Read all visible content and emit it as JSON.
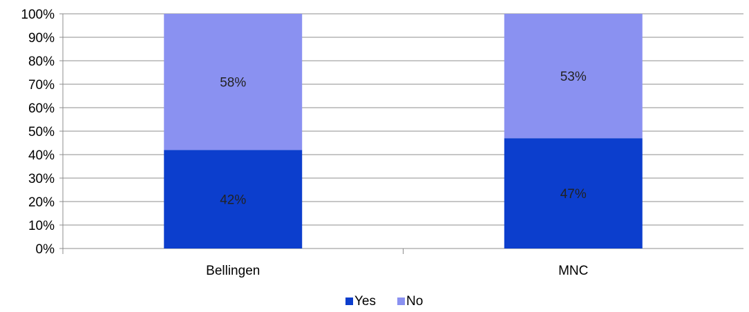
{
  "chart_data": {
    "type": "bar",
    "stacked": true,
    "percent": true,
    "categories": [
      "Bellingen",
      "MNC"
    ],
    "series": [
      {
        "name": "Yes",
        "values": [
          42,
          47
        ],
        "labels": [
          "42%",
          "47%"
        ],
        "color": "#0c3ecd"
      },
      {
        "name": "No",
        "values": [
          58,
          53
        ],
        "labels": [
          "58%",
          "53%"
        ],
        "color": "#8a91f1"
      }
    ],
    "yticks": [
      "0%",
      "10%",
      "20%",
      "30%",
      "40%",
      "50%",
      "60%",
      "70%",
      "80%",
      "90%",
      "100%"
    ],
    "ylim": [
      0,
      100
    ],
    "grid": true,
    "legend_position": "bottom"
  }
}
